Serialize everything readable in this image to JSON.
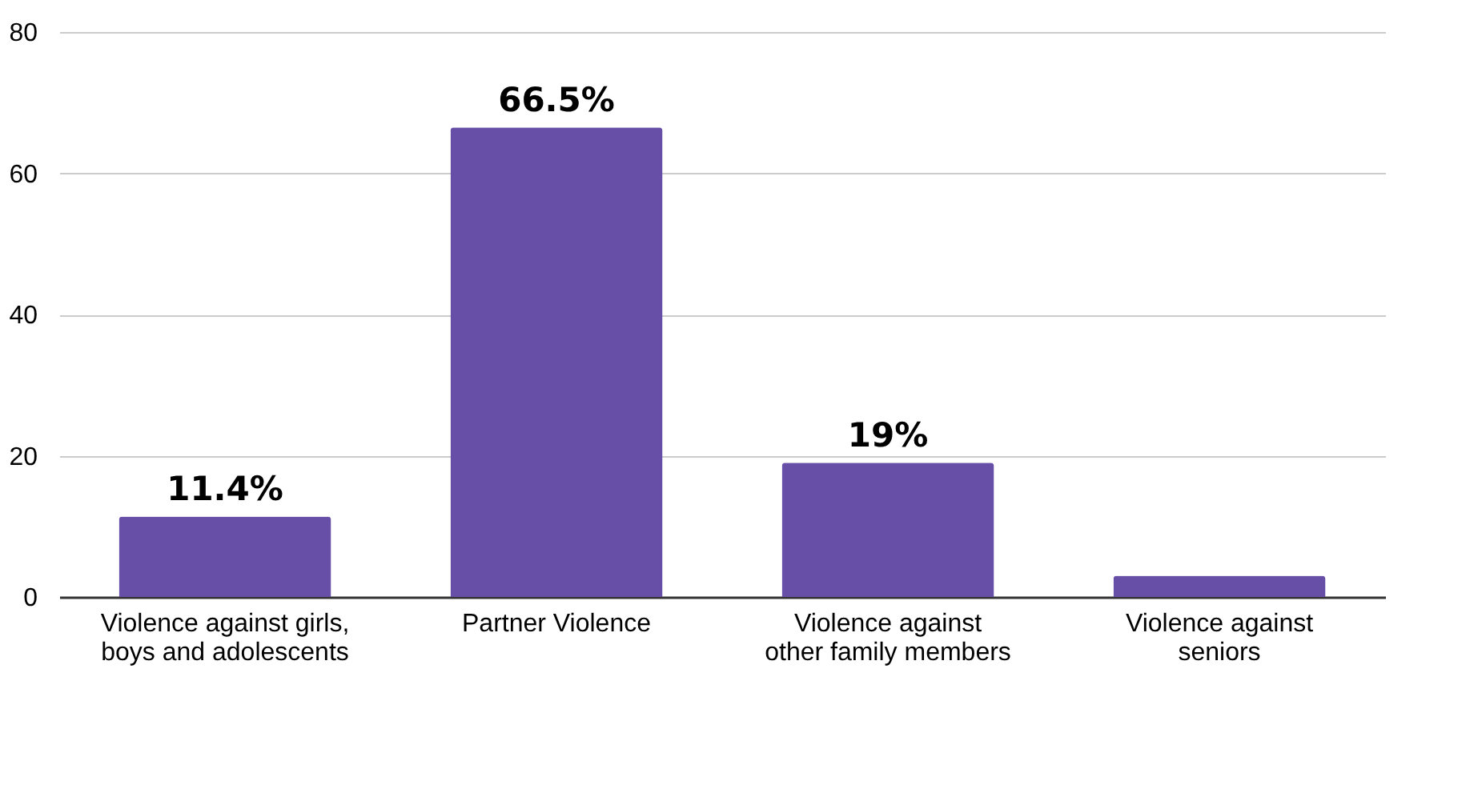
{
  "chart_data": {
    "type": "bar",
    "categories": [
      "Violence against girls, boys and adolescents",
      "Partner Violence",
      "Violence against other family members",
      "Violence against seniors"
    ],
    "values": [
      11.4,
      66.5,
      19,
      3
    ],
    "value_labels": [
      "11.4%",
      "66.5%",
      "19%",
      null
    ],
    "color": "#674ea7",
    "ylim": [
      0,
      80
    ],
    "yticks": [
      0,
      20,
      40,
      60,
      80
    ],
    "grid": "y"
  }
}
